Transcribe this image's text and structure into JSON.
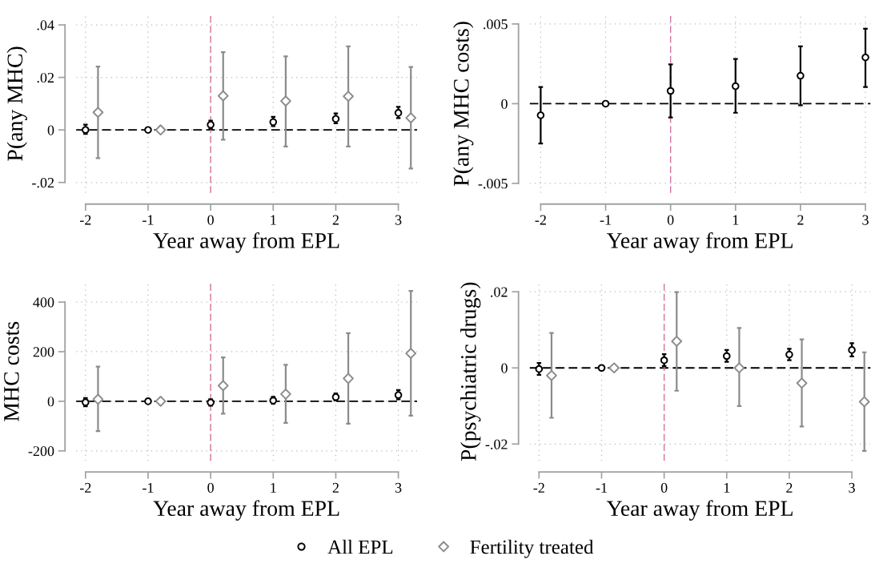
{
  "chart_data": [
    {
      "type": "scatter",
      "ylabel": "P(any MHC)",
      "xlabel": "Year away from EPL",
      "xlim": [
        -2.15,
        3.3
      ],
      "xticks": [
        -2,
        -1,
        0,
        1,
        2,
        3
      ],
      "ylim": [
        -0.024,
        0.044
      ],
      "yticks": [
        {
          "value": -0.02,
          "label": "-.02"
        },
        0,
        {
          "value": 0.02,
          "label": ".02"
        },
        {
          "value": 0.04,
          "label": ".04"
        }
      ],
      "grid": true,
      "legend": "bottom",
      "ref_lines": [
        {
          "axis": "y",
          "value": 0,
          "color": "#000000",
          "line_style": "dashed"
        },
        {
          "axis": "x",
          "value": 0,
          "color": "#d4729e",
          "line_style": "dashed"
        }
      ],
      "series": [
        {
          "name": "All EPL",
          "color": "#000000",
          "marker": "circle",
          "x": [
            -2,
            -1,
            0,
            1,
            2,
            3
          ],
          "values": [
            0,
            0,
            0.002,
            0.003,
            0.0042,
            0.0065
          ],
          "errors": [
            [
              -0.0015,
              0.002
            ],
            null,
            [
              0.0005,
              0.0035
            ],
            [
              0.0015,
              0.005
            ],
            [
              0.0025,
              0.0063
            ],
            [
              0.0045,
              0.0088
            ]
          ]
        },
        {
          "name": "Fertility treated",
          "color": "#8c8c8c",
          "marker": "diamond",
          "x": [
            -1.8,
            -0.8,
            0.2,
            1.2,
            2.2,
            3.2
          ],
          "values": [
            0.0067,
            0,
            0.013,
            0.011,
            0.0128,
            0.0046
          ],
          "errors": [
            [
              -0.0107,
              0.0241
            ],
            null,
            [
              -0.0037,
              0.0296
            ],
            [
              -0.0063,
              0.028
            ],
            [
              -0.0063,
              0.0318
            ],
            [
              -0.0147,
              0.024
            ]
          ]
        }
      ]
    },
    {
      "type": "scatter",
      "ylabel": "P(any MHC costs)",
      "xlabel": "Year away from EPL",
      "xlim": [
        -2.17,
        3.08
      ],
      "xticks": [
        -2,
        -1,
        0,
        1,
        2,
        3
      ],
      "ylim": [
        -0.0056,
        0.0056
      ],
      "yticks": [
        {
          "value": -0.005,
          "label": "-.005"
        },
        0,
        {
          "value": 0.005,
          "label": ".005"
        }
      ],
      "grid": true,
      "ref_lines": [
        {
          "axis": "y",
          "value": 0,
          "color": "#000000",
          "line_style": "dashed"
        },
        {
          "axis": "x",
          "value": 0,
          "color": "#d4729e",
          "line_style": "dashed"
        }
      ],
      "series": [
        {
          "color": "#000000",
          "marker": "circle",
          "x": [
            -2,
            -1,
            0,
            1,
            2,
            3
          ],
          "values": [
            -0.00073,
            0,
            0.0008,
            0.0011,
            0.00175,
            0.0029
          ],
          "errors": [
            [
              -0.0025,
              0.00105
            ],
            null,
            [
              -0.00087,
              0.00247
            ],
            [
              -0.00057,
              0.0028
            ],
            [
              -0.0001,
              0.0036
            ],
            [
              0.00105,
              0.0047
            ]
          ]
        }
      ]
    },
    {
      "type": "scatter",
      "ylabel": "MHC costs",
      "xlabel": "Year away from EPL",
      "xlim": [
        -2.15,
        3.3
      ],
      "xticks": [
        -2,
        -1,
        0,
        1,
        2,
        3
      ],
      "ylim": [
        -240,
        480
      ],
      "yticks": [
        -200,
        0,
        200,
        400
      ],
      "grid": true,
      "ref_lines": [
        {
          "axis": "y",
          "value": 0,
          "color": "#000000",
          "line_style": "dashed"
        },
        {
          "axis": "x",
          "value": 0,
          "color": "#d4729e",
          "line_style": "dashed"
        }
      ],
      "series": [
        {
          "color": "#000000",
          "marker": "circle",
          "x": [
            -2,
            -1,
            0,
            1,
            2,
            3
          ],
          "values": [
            -4,
            0,
            -5,
            3,
            17,
            25
          ],
          "errors": [
            [
              -20,
              13
            ],
            null,
            [
              -18,
              8
            ],
            [
              -10,
              18
            ],
            [
              3,
              32
            ],
            [
              8,
              45
            ]
          ]
        },
        {
          "color": "#8c8c8c",
          "marker": "diamond",
          "x": [
            -1.8,
            -0.8,
            0.2,
            1.2,
            2.2,
            3.2
          ],
          "values": [
            8,
            0,
            63,
            29,
            92,
            193
          ],
          "errors": [
            [
              -120,
              140
            ],
            null,
            [
              -50,
              177
            ],
            [
              -87,
              147
            ],
            [
              -90,
              275
            ],
            [
              -58,
              445
            ]
          ]
        }
      ]
    },
    {
      "type": "scatter",
      "ylabel": "P(psychiatric drugs)",
      "xlabel": "Year away from EPL",
      "xlim": [
        -2.15,
        3.3
      ],
      "xticks": [
        -2,
        -1,
        0,
        1,
        2,
        3
      ],
      "ylim": [
        -0.0244,
        0.0225
      ],
      "yticks": [
        {
          "value": -0.02,
          "label": "-.02"
        },
        0,
        {
          "value": 0.02,
          "label": ".02"
        }
      ],
      "grid": true,
      "ref_lines": [
        {
          "axis": "y",
          "value": 0,
          "color": "#000000",
          "line_style": "dashed"
        },
        {
          "axis": "x",
          "value": 0,
          "color": "#d4729e",
          "line_style": "dashed"
        }
      ],
      "series": [
        {
          "color": "#000000",
          "marker": "circle",
          "x": [
            -2,
            -1,
            0,
            1,
            2,
            3
          ],
          "values": [
            -0.0003,
            0,
            0.002,
            0.0031,
            0.0035,
            0.0047
          ],
          "errors": [
            [
              -0.0018,
              0.0013
            ],
            null,
            [
              0.0005,
              0.0036
            ],
            [
              0.0016,
              0.0047
            ],
            [
              0.002,
              0.005
            ],
            [
              0.003,
              0.0065
            ]
          ]
        },
        {
          "color": "#8c8c8c",
          "marker": "diamond",
          "x": [
            -1.8,
            -0.8,
            0.2,
            1.2,
            2.2,
            3.2
          ],
          "values": [
            -0.002,
            0,
            0.007,
            0,
            -0.004,
            -0.0089
          ],
          "errors": [
            [
              -0.0131,
              0.0092
            ],
            null,
            [
              -0.006,
              0.0199
            ],
            [
              -0.01,
              0.0105
            ],
            [
              -0.0154,
              0.0075
            ],
            [
              -0.0218,
              0.0041
            ]
          ]
        }
      ]
    }
  ]
}
